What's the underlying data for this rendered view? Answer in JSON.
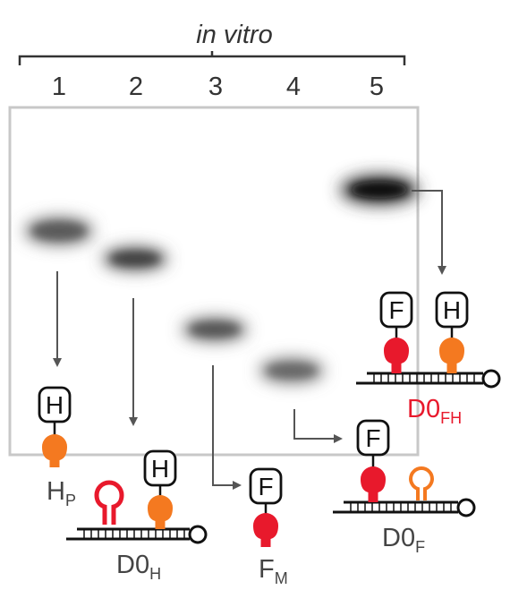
{
  "header": {
    "condition": "in vitro",
    "lanes": [
      "1",
      "2",
      "3",
      "4",
      "5"
    ]
  },
  "colors": {
    "red": "#e8192c",
    "orange": "#f47920",
    "gray": "#555555",
    "band": "#3a3a3a"
  },
  "species": {
    "hp": {
      "base": "H",
      "sub": "P",
      "tag": "H"
    },
    "d0h": {
      "base": "D0",
      "sub": "H",
      "tag": "H"
    },
    "fm": {
      "base": "F",
      "sub": "M",
      "tag": "F"
    },
    "d0f": {
      "base": "D0",
      "sub": "F",
      "tag": "F"
    },
    "d0fh": {
      "base": "D0",
      "sub": "FH",
      "tag_left": "F",
      "tag_right": "H"
    }
  }
}
